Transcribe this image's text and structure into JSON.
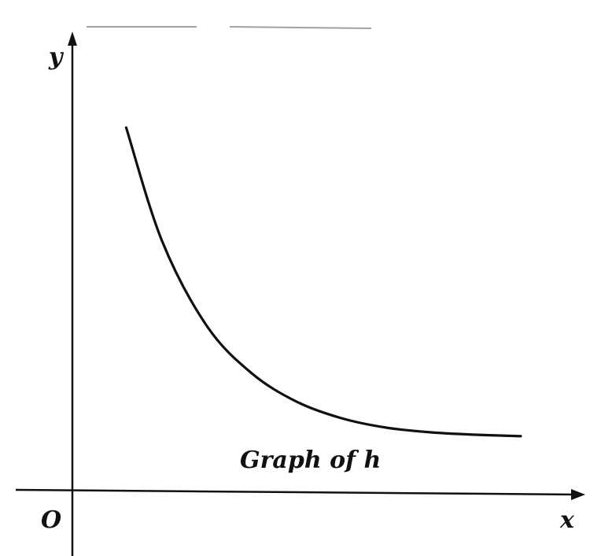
{
  "chart_data": {
    "type": "line",
    "annotation": "Graph of h",
    "axis_letters": {
      "x": "x",
      "y": "y",
      "origin": "O"
    },
    "ticks_shown": false,
    "grid": false,
    "series": [
      {
        "name": "",
        "x": [
          0.12,
          0.2,
          0.3,
          0.4,
          0.5,
          0.6,
          0.7,
          0.8,
          0.9,
          1.0
        ],
        "y": [
          0.77,
          0.53,
          0.35,
          0.25,
          0.19,
          0.155,
          0.135,
          0.125,
          0.12,
          0.117
        ]
      }
    ],
    "xlim": [
      -0.1,
      1.1
    ],
    "ylim": [
      -0.05,
      1.0
    ]
  }
}
